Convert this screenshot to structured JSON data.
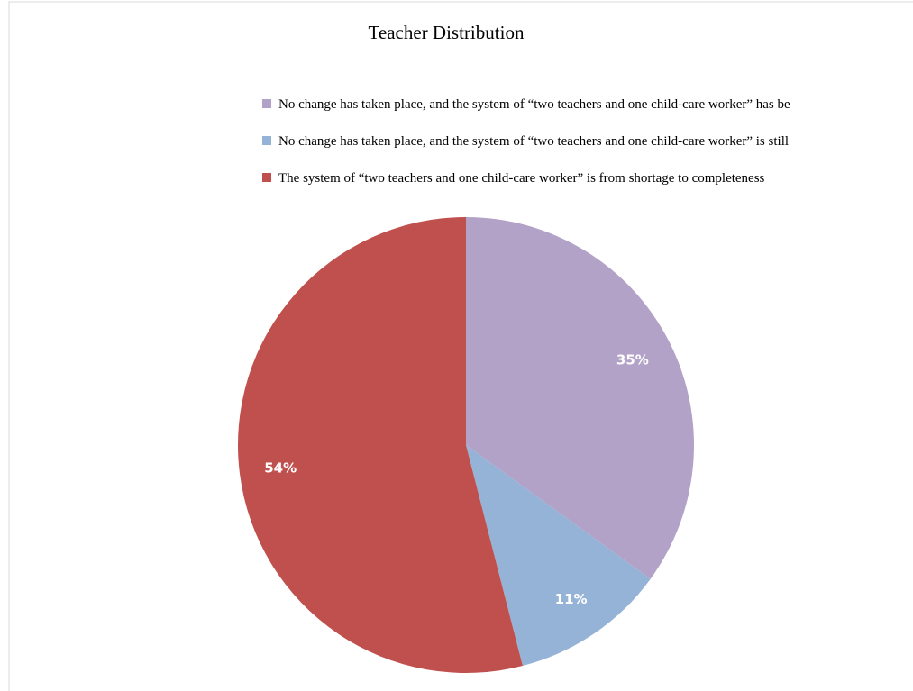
{
  "chart_data": {
    "type": "pie",
    "title": "Teacher Distribution",
    "categories": [
      "No change has taken place, and the system of “two teachers and one child-care worker” has be",
      "No change has taken place, and the system of “two teachers and one child-care worker” is still",
      "The system of “two teachers and one child-care worker” is from shortage to completeness"
    ],
    "values": [
      35,
      11,
      54
    ],
    "value_labels": [
      "35%",
      "11%",
      "54%"
    ],
    "colors": [
      "#b3a2c7",
      "#95b3d7",
      "#c0504d"
    ],
    "legend": "top"
  }
}
